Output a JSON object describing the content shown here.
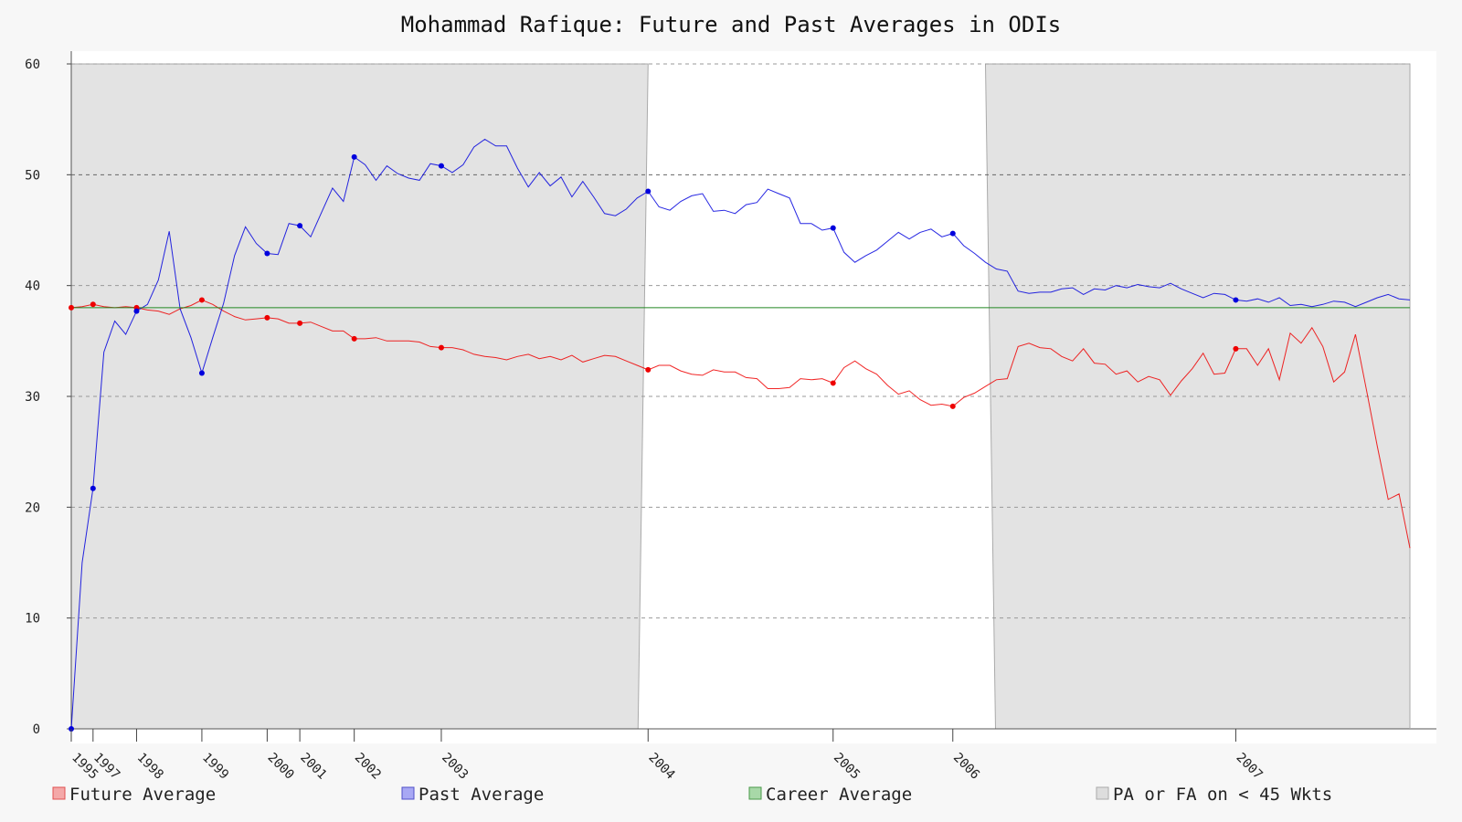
{
  "chart_data": {
    "type": "line",
    "title": "Mohammad Rafique: Future and Past Averages in ODIs",
    "xlabel": "",
    "ylabel": "",
    "ylim": [
      0,
      60
    ],
    "yticks": [
      0,
      10,
      20,
      30,
      40,
      50,
      60
    ],
    "grid": true,
    "legend_position": "bottom",
    "career_average": 38.0,
    "x_ticks": [
      {
        "label": "1995",
        "x": 0
      },
      {
        "label": "1997",
        "x": 2
      },
      {
        "label": "1998",
        "x": 6
      },
      {
        "label": "1999",
        "x": 12
      },
      {
        "label": "2000",
        "x": 18
      },
      {
        "label": "2001",
        "x": 21
      },
      {
        "label": "2002",
        "x": 26
      },
      {
        "label": "2003",
        "x": 34
      },
      {
        "label": "2004",
        "x": 53
      },
      {
        "label": "2005",
        "x": 70
      },
      {
        "label": "2006",
        "x": 81
      },
      {
        "label": "2007",
        "x": 107
      }
    ],
    "x_max": 123,
    "shaded_regions": [
      {
        "name": "PA or FA on < 45 Wkts",
        "from": 0,
        "to": 53
      },
      {
        "name": "PA or FA on < 45 Wkts",
        "from": 84,
        "to": 123
      }
    ],
    "series": [
      {
        "name": "Future Average",
        "color": "#ee0000",
        "values": [
          38.0,
          38.1,
          38.3,
          38.1,
          38.0,
          38.1,
          38.0,
          37.8,
          37.7,
          37.4,
          37.9,
          38.2,
          38.7,
          38.3,
          37.7,
          37.2,
          36.9,
          37.0,
          37.1,
          37.0,
          36.6,
          36.6,
          36.7,
          36.3,
          35.9,
          35.9,
          35.2,
          35.2,
          35.3,
          35.0,
          35.0,
          35.0,
          34.9,
          34.5,
          34.4,
          34.4,
          34.2,
          33.8,
          33.6,
          33.5,
          33.3,
          33.6,
          33.8,
          33.4,
          33.6,
          33.3,
          33.7,
          33.1,
          33.4,
          33.7,
          33.6,
          33.2,
          32.8,
          32.4,
          32.8,
          32.8,
          32.3,
          32.0,
          31.9,
          32.4,
          32.2,
          32.2,
          31.7,
          31.6,
          30.7,
          30.7,
          30.8,
          31.6,
          31.5,
          31.6,
          31.2,
          32.6,
          33.2,
          32.5,
          32.0,
          31.0,
          30.2,
          30.5,
          29.7,
          29.2,
          29.3,
          29.1,
          29.9,
          30.3,
          30.9,
          31.5,
          31.6,
          34.5,
          34.8,
          34.4,
          34.3,
          33.6,
          33.2,
          34.3,
          33.0,
          32.9,
          32.0,
          32.3,
          31.3,
          31.8,
          31.5,
          30.1,
          31.4,
          32.5,
          33.9,
          32.0,
          32.1,
          34.3,
          34.3,
          32.8,
          34.3,
          31.5,
          35.7,
          34.8,
          36.2,
          34.5,
          31.3,
          32.2,
          35.6,
          30.6,
          25.5,
          20.7,
          21.2,
          16.3
        ],
        "marker_indices": [
          0,
          2,
          6,
          12,
          18,
          21,
          26,
          34,
          53,
          70,
          81,
          107
        ]
      },
      {
        "name": "Past Average",
        "color": "#0000dd",
        "values": [
          0.0,
          15.0,
          21.7,
          34.0,
          36.8,
          35.6,
          37.7,
          38.3,
          40.5,
          44.9,
          37.9,
          35.3,
          32.1,
          35.3,
          38.4,
          42.7,
          45.3,
          43.8,
          42.9,
          42.8,
          45.6,
          45.4,
          44.4,
          46.6,
          48.8,
          47.6,
          51.6,
          50.9,
          49.5,
          50.8,
          50.1,
          49.7,
          49.5,
          51.0,
          50.8,
          50.2,
          50.9,
          52.5,
          53.2,
          52.6,
          52.6,
          50.6,
          48.9,
          50.2,
          49.0,
          49.8,
          48.0,
          49.4,
          48.0,
          46.5,
          46.3,
          46.9,
          47.9,
          48.5,
          47.1,
          46.8,
          47.6,
          48.1,
          48.3,
          46.7,
          46.8,
          46.5,
          47.3,
          47.5,
          48.7,
          48.3,
          47.9,
          45.6,
          45.6,
          45.0,
          45.2,
          43.0,
          42.1,
          42.7,
          43.2,
          44.0,
          44.8,
          44.2,
          44.8,
          45.1,
          44.4,
          44.7,
          43.6,
          42.9,
          42.1,
          41.5,
          41.3,
          39.5,
          39.3,
          39.4,
          39.4,
          39.7,
          39.8,
          39.2,
          39.7,
          39.6,
          40.0,
          39.8,
          40.1,
          39.9,
          39.8,
          40.2,
          39.7,
          39.3,
          38.9,
          39.3,
          39.2,
          38.7,
          38.6,
          38.8,
          38.5,
          38.9,
          38.2,
          38.3,
          38.1,
          38.3,
          38.6,
          38.5,
          38.1,
          38.5,
          38.9,
          39.2,
          38.8,
          38.7
        ],
        "marker_indices": [
          0,
          2,
          6,
          12,
          18,
          21,
          26,
          34,
          53,
          70,
          81,
          107
        ]
      },
      {
        "name": "Career Average",
        "color": "#228822"
      }
    ]
  },
  "legend": [
    {
      "label": "Future Average",
      "fill": "#f4a8a8",
      "stroke": "#e05050"
    },
    {
      "label": "Past Average",
      "fill": "#a8a8f4",
      "stroke": "#5050c8"
    },
    {
      "label": "Career Average",
      "fill": "#a8d8a8",
      "stroke": "#4a9a4a"
    },
    {
      "label": "PA or FA on < 45 Wkts",
      "fill": "#dddddd",
      "stroke": "#aaaaaa"
    }
  ]
}
